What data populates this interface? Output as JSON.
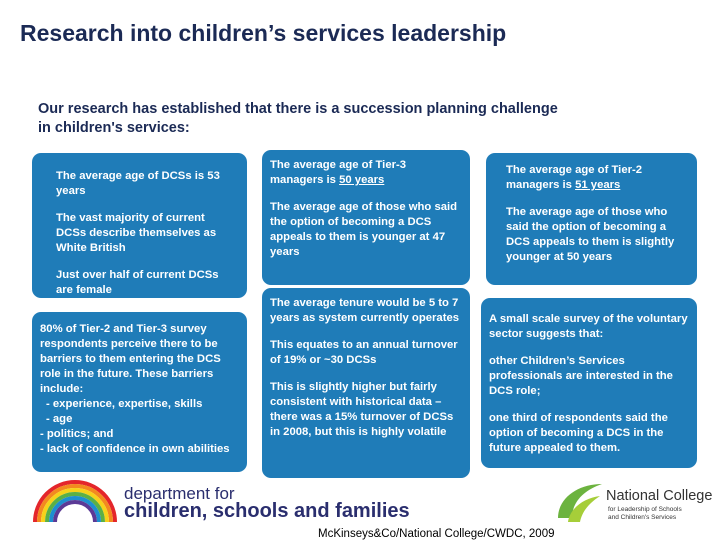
{
  "title": "Research into children’s services leadership",
  "intro": "Our research has established that there is a succession planning challenge in children's services:",
  "boxes": [
    {
      "paragraphs": [
        "The average age of DCSs is 53 years",
        "The vast majority of current DCSs describe themselves as White British",
        "Just over half of current DCSs are female"
      ]
    },
    {
      "paragraphs": [
        {
          "text": "The average age of Tier-3 managers is ",
          "underline": "50 years"
        },
        "The average age of those who said the option of becoming a DCS appeals to them is younger at 47 years"
      ]
    },
    {
      "paragraphs": [
        {
          "text": "The average age of Tier-2 managers is ",
          "underline": "51 years"
        },
        "The average age of those who said the option of becoming a DCS appeals to them is slightly younger at 50 years"
      ]
    },
    {
      "paragraphs": [
        "80% of Tier-2 and Tier-3 survey respondents perceive there to be barriers to them entering the DCS role in the future. These barriers include:",
        "- experience, expertise, skills",
        "- age",
        "- politics; and",
        "- lack of confidence in own abilities"
      ]
    },
    {
      "paragraphs": [
        "The average tenure would be 5 to 7 years as system currently operates",
        "This equates to an annual turnover of 19% or ~30 DCSs",
        "This is slightly higher but fairly consistent with historical data – there was a 15% turnover of DCSs in 2008, but this is highly volatile"
      ]
    },
    {
      "paragraphs": [
        "A small scale survey of the voluntary sector suggests that:",
        "other Children’s Services professionals are interested in the DCS role;",
        "one third of respondents said the option of becoming a DCS in the future appealed to them."
      ]
    }
  ],
  "logos": {
    "dcsf": [
      "department for",
      "children, schools and families"
    ],
    "college": [
      "National College",
      "for Leadership of Schools",
      "and Children's Services"
    ]
  },
  "source": "McKinseys&Co/National College/CWDC, 2009"
}
